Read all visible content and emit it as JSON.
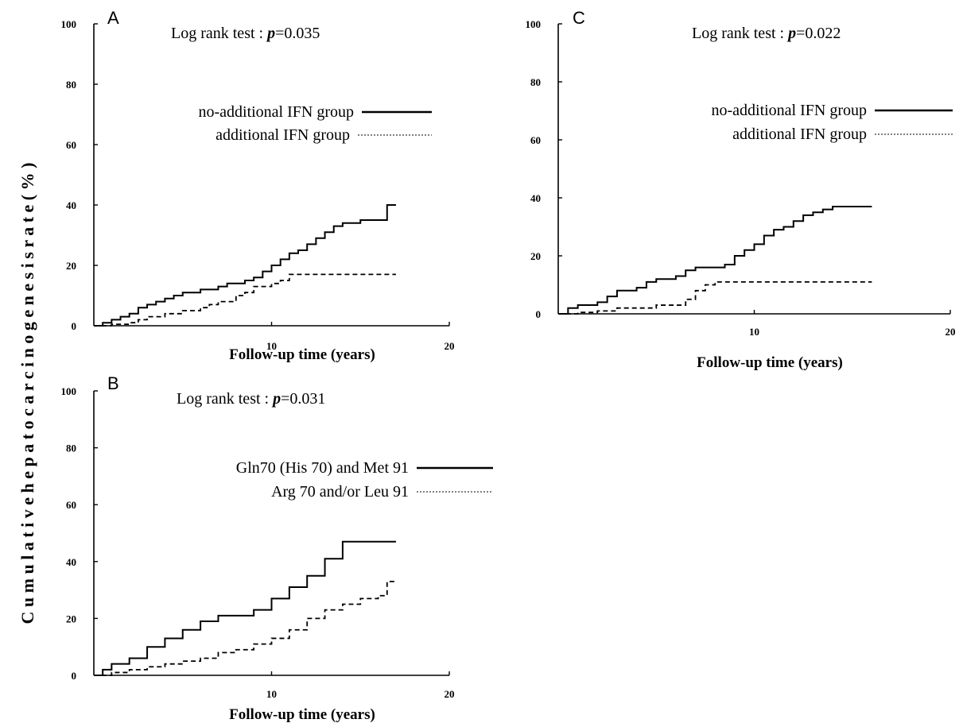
{
  "figure": {
    "ylabel": "C u m u l a t i v e   h e p a t o c a r c i n o g e n e s i s   r a t e   ( % )"
  },
  "chart_data": [
    {
      "panel": "A",
      "type": "line",
      "title": "A",
      "subtitle_prefix": "Log rank test : ",
      "subtitle_p": "p",
      "subtitle_value": "=0.035",
      "xlabel": "Follow-up time (years)",
      "ylabel": "",
      "xlim": [
        0,
        20
      ],
      "ylim": [
        0,
        100
      ],
      "xticks": [
        10,
        20
      ],
      "yticks": [
        0,
        20,
        40,
        60,
        80,
        100
      ],
      "grid": false,
      "legend_position": "top-right",
      "series": [
        {
          "name": "no-additional IFN group",
          "style": "solid",
          "color": "#000000",
          "x": [
            0,
            0.5,
            1,
            1.5,
            2,
            2.5,
            3,
            3.5,
            4,
            4.5,
            5,
            6,
            7,
            7.5,
            8,
            8.5,
            9,
            9.5,
            10,
            10.5,
            11,
            11.5,
            12,
            12.5,
            13,
            13.5,
            14,
            15,
            16,
            16.5,
            17
          ],
          "y": [
            0,
            1,
            2,
            3,
            4,
            6,
            7,
            8,
            9,
            10,
            11,
            12,
            13,
            14,
            14,
            15,
            16,
            18,
            20,
            22,
            24,
            25,
            27,
            29,
            31,
            33,
            34,
            35,
            35,
            40,
            40
          ]
        },
        {
          "name": "additional IFN group",
          "style": "dashed",
          "color": "#000000",
          "x": [
            0,
            1,
            2,
            2.5,
            3,
            4,
            5,
            6,
            6.5,
            7,
            8,
            8.5,
            9,
            10,
            10.5,
            11,
            12,
            13,
            15,
            17
          ],
          "y": [
            0,
            0.5,
            1,
            2,
            3,
            4,
            5,
            6,
            7,
            8,
            10,
            11,
            13,
            14,
            15,
            17,
            17,
            17,
            17,
            17
          ]
        }
      ]
    },
    {
      "panel": "B",
      "type": "line",
      "title": "B",
      "subtitle_prefix": "Log rank test : ",
      "subtitle_p": "p",
      "subtitle_value": "=0.031",
      "xlabel": "Follow-up time (years)",
      "ylabel": "",
      "xlim": [
        0,
        20
      ],
      "ylim": [
        0,
        100
      ],
      "xticks": [
        10,
        20
      ],
      "yticks": [
        0,
        20,
        40,
        60,
        80,
        100
      ],
      "grid": false,
      "legend_position": "top-right",
      "series": [
        {
          "name": "Gln70 (His 70) and Met 91",
          "style": "solid",
          "color": "#000000",
          "x": [
            0,
            0.5,
            1,
            2,
            3,
            4,
            5,
            6,
            7,
            9,
            10,
            11,
            12,
            13,
            14,
            15,
            17
          ],
          "y": [
            0,
            2,
            4,
            6,
            10,
            13,
            16,
            19,
            21,
            23,
            27,
            31,
            35,
            41,
            47,
            47,
            47
          ]
        },
        {
          "name": "Arg 70 and/or Leu 91",
          "style": "dashed",
          "color": "#000000",
          "x": [
            0,
            1,
            2,
            3,
            4,
            5,
            6,
            7,
            8,
            9,
            10,
            11,
            12,
            13,
            14,
            15,
            16,
            16.5,
            17
          ],
          "y": [
            0,
            1,
            2,
            3,
            4,
            5,
            6,
            8,
            9,
            11,
            13,
            16,
            20,
            23,
            25,
            27,
            28,
            33,
            33
          ]
        }
      ]
    },
    {
      "panel": "C",
      "type": "line",
      "title": "C",
      "subtitle_prefix": "Log rank test : ",
      "subtitle_p": "p",
      "subtitle_value": "=0.022",
      "xlabel": "Follow-up time (years)",
      "ylabel": "",
      "xlim": [
        0,
        20
      ],
      "ylim": [
        0,
        100
      ],
      "xticks": [
        10,
        20
      ],
      "yticks": [
        0,
        20,
        40,
        60,
        80,
        100
      ],
      "grid": false,
      "legend_position": "top-right",
      "series": [
        {
          "name": "no-additional IFN group",
          "style": "solid",
          "color": "#000000",
          "x": [
            0,
            0.5,
            1,
            2,
            2.5,
            3,
            4,
            4.5,
            5,
            6,
            6.5,
            7,
            8,
            8.5,
            9,
            9.5,
            10,
            10.5,
            11,
            11.5,
            12,
            12.5,
            13,
            13.5,
            14,
            16
          ],
          "y": [
            0,
            2,
            3,
            4,
            6,
            8,
            9,
            11,
            12,
            13,
            15,
            16,
            16,
            17,
            20,
            22,
            24,
            27,
            29,
            30,
            32,
            34,
            35,
            36,
            37,
            37
          ]
        },
        {
          "name": "additional IFN group",
          "style": "dashed",
          "color": "#000000",
          "x": [
            0,
            1,
            2,
            3,
            4,
            5,
            6,
            6.5,
            7,
            7.5,
            8,
            9,
            10,
            12,
            14,
            16
          ],
          "y": [
            0,
            0.5,
            1,
            2,
            2,
            3,
            3,
            5,
            8,
            10,
            11,
            11,
            11,
            11,
            11,
            11
          ]
        }
      ]
    }
  ]
}
